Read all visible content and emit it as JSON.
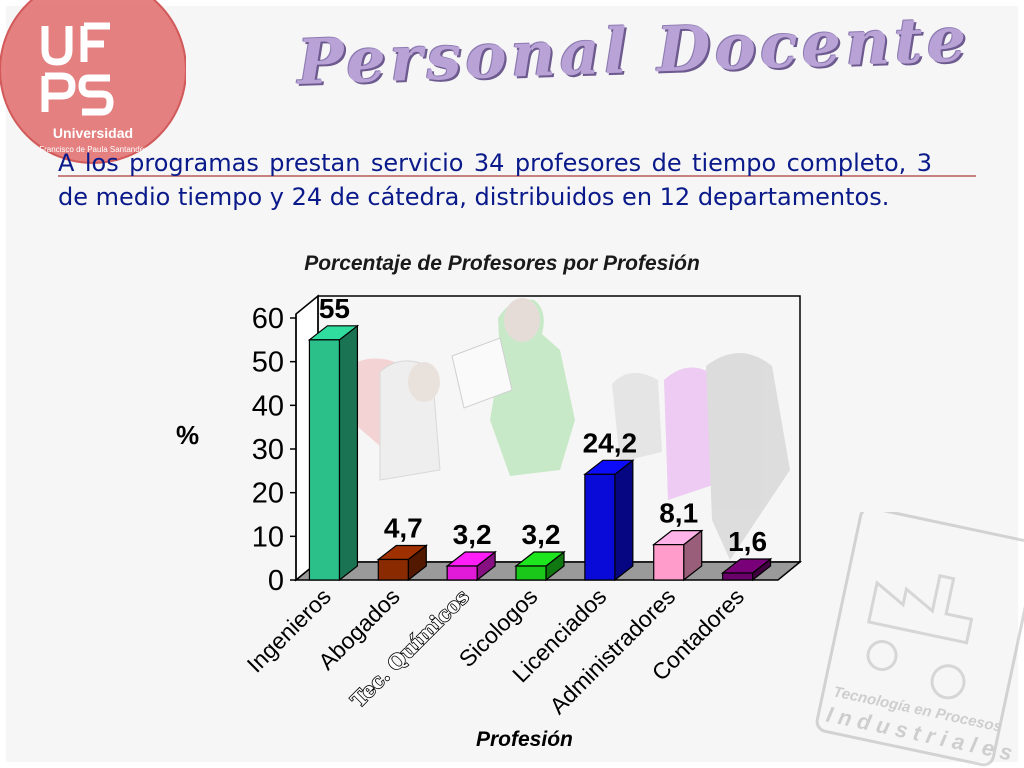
{
  "header": {
    "logo_text": "UFPS",
    "logo_caption": "Universidad",
    "logo_sub_caption": "Francisco de Paula Santander",
    "title": "Personal Docente"
  },
  "body": {
    "paragraph": "A los programas prestan servicio 34 profesores de tiempo completo, 3 de medio tiempo y 24 de cátedra, distribuidos en 12 departamentos."
  },
  "watermark": {
    "line1": "Tecnología en Procesos",
    "line2": "Industriales"
  },
  "colors": {
    "accent_text": "#0a1a8a",
    "title": "#b9a3d6",
    "rule": "#c98080",
    "logo_circle": "#e06b6b"
  },
  "chart_data": {
    "type": "bar",
    "title": "Porcentaje de Profesores por Profesión",
    "xlabel": "Profesión",
    "ylabel": "%",
    "ylim": [
      0,
      60
    ],
    "yticks": [
      0,
      10,
      20,
      30,
      40,
      50,
      60
    ],
    "categories": [
      "Ingenieros",
      "Abogados",
      "Tec. Químicos",
      "Sicologos",
      "Licenciados",
      "Administradores",
      "Contadores"
    ],
    "values": [
      55,
      4.7,
      3.2,
      3.2,
      24.2,
      8.1,
      1.6
    ],
    "value_labels": [
      "55",
      "4,7",
      "3,2",
      "3,2",
      "24,2",
      "8,1",
      "1,6"
    ],
    "bar_colors": [
      "#2bbf8a",
      "#8a2a00",
      "#e01ad8",
      "#1ac81a",
      "#0a0ad8",
      "#ff9ccb",
      "#6a006a"
    ],
    "grid": false,
    "legend": "none",
    "style": "3d"
  }
}
